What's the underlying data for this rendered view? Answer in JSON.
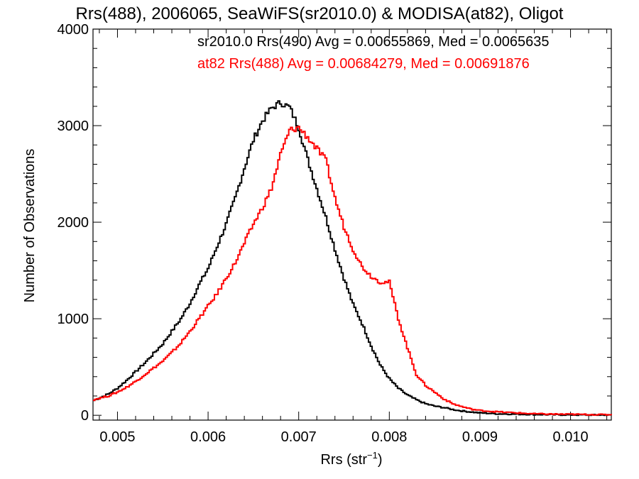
{
  "chart_data": {
    "type": "line",
    "title": "Rrs(488), 2006065, SeaWiFS(sr2010.0) & MODISA(at82), Oligot",
    "xlabel_main": "Rrs (str",
    "xlabel_sup": "−1",
    "xlabel_end": ")",
    "ylabel": "Number of Observations",
    "xlim": [
      0.00473,
      0.01045
    ],
    "ylim": [
      -50,
      4000
    ],
    "x_ticks": [
      0.005,
      0.006,
      0.007,
      0.008,
      0.009,
      0.01
    ],
    "x_tick_labels": [
      "0.005",
      "0.006",
      "0.007",
      "0.008",
      "0.009",
      "0.010"
    ],
    "y_ticks": [
      0,
      1000,
      2000,
      3000,
      4000
    ],
    "y_tick_labels": [
      "0",
      "1000",
      "2000",
      "3000",
      "4000"
    ],
    "grid": false,
    "legend_placement": "top-right",
    "series": [
      {
        "name": "sr2010.0 Rrs(490) Avg = 0.00655869, Med = 0.0065635",
        "color": "#000000",
        "x": [
          0.00473,
          0.0049,
          0.005,
          0.0051,
          0.0052,
          0.0053,
          0.0054,
          0.0055,
          0.0056,
          0.0057,
          0.0058,
          0.0059,
          0.006,
          0.0061,
          0.0062,
          0.0063,
          0.0064,
          0.0065,
          0.0066,
          0.0067,
          0.0068,
          0.0069,
          0.007,
          0.0071,
          0.0072,
          0.0073,
          0.0074,
          0.0075,
          0.0076,
          0.0077,
          0.0078,
          0.0079,
          0.008,
          0.0081,
          0.0082,
          0.0083,
          0.0084,
          0.0085,
          0.0086,
          0.0087,
          0.0088,
          0.0089,
          0.009,
          0.0092,
          0.0094,
          0.0096,
          0.0098,
          0.01,
          0.0102,
          0.01045
        ],
        "y": [
          150,
          220,
          280,
          360,
          450,
          540,
          640,
          740,
          870,
          1000,
          1160,
          1350,
          1520,
          1750,
          1980,
          2250,
          2560,
          2850,
          3050,
          3180,
          3240,
          3190,
          2980,
          2650,
          2350,
          2050,
          1720,
          1420,
          1150,
          950,
          720,
          520,
          380,
          280,
          210,
          160,
          120,
          95,
          80,
          60,
          45,
          35,
          25,
          15,
          12,
          8,
          6,
          4,
          3,
          2
        ]
      },
      {
        "name": "at82 Rrs(488) Avg = 0.00684279, Med = 0.00691876",
        "color": "#ff0000",
        "x": [
          0.00473,
          0.0049,
          0.005,
          0.0051,
          0.0052,
          0.0053,
          0.0054,
          0.0055,
          0.0056,
          0.0057,
          0.0058,
          0.0059,
          0.006,
          0.0061,
          0.0062,
          0.0063,
          0.0064,
          0.0065,
          0.0066,
          0.0067,
          0.0068,
          0.0069,
          0.007,
          0.0071,
          0.0072,
          0.0073,
          0.0074,
          0.0075,
          0.0076,
          0.0077,
          0.0078,
          0.0079,
          0.008,
          0.0081,
          0.0082,
          0.0083,
          0.0084,
          0.0085,
          0.0086,
          0.0087,
          0.0088,
          0.0089,
          0.009,
          0.0092,
          0.0094,
          0.0096,
          0.0098,
          0.01,
          0.0102,
          0.01045
        ],
        "y": [
          160,
          200,
          240,
          290,
          350,
          420,
          490,
          560,
          650,
          750,
          870,
          1000,
          1130,
          1260,
          1420,
          1580,
          1780,
          1980,
          2150,
          2350,
          2700,
          2950,
          2980,
          2880,
          2760,
          2640,
          2250,
          1950,
          1720,
          1540,
          1440,
          1380,
          1380,
          1000,
          700,
          420,
          310,
          240,
          170,
          120,
          90,
          65,
          50,
          35,
          25,
          15,
          12,
          10,
          8,
          6
        ]
      }
    ]
  }
}
